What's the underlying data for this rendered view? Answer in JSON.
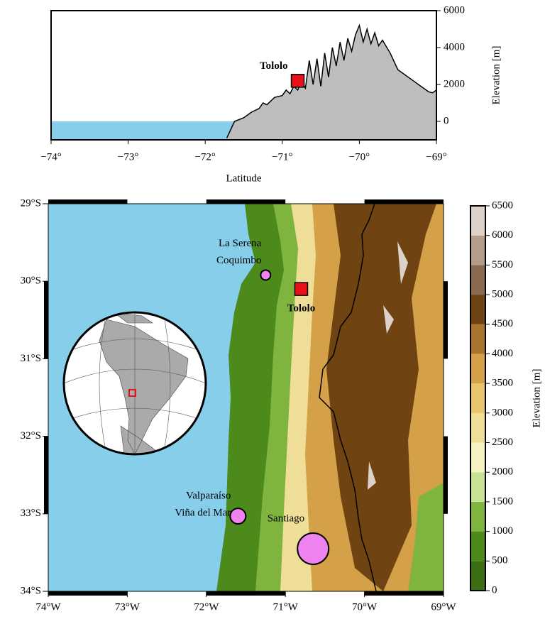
{
  "profile": {
    "type": "area",
    "x": [
      -71.72,
      -71.62,
      -71.5,
      -71.4,
      -71.3,
      -71.25,
      -71.2,
      -71.1,
      -71.0,
      -70.95,
      -70.9,
      -70.85,
      -70.8,
      -70.75,
      -70.7,
      -70.65,
      -70.6,
      -70.55,
      -70.5,
      -70.45,
      -70.4,
      -70.35,
      -70.3,
      -70.25,
      -70.2,
      -70.15,
      -70.1,
      -70.05,
      -70.0,
      -69.95,
      -69.9,
      -69.85,
      -69.8,
      -69.75,
      -69.7,
      -69.6,
      -69.5,
      -69.4,
      -69.3,
      -69.2,
      -69.1,
      -69.05,
      -69.0
    ],
    "values": [
      -900,
      0,
      200,
      500,
      700,
      1000,
      900,
      1300,
      1400,
      1700,
      1500,
      1900,
      1700,
      2200,
      1800,
      3300,
      2000,
      3400,
      1900,
      3700,
      2400,
      4000,
      3000,
      4300,
      3300,
      4500,
      3800,
      4700,
      5200,
      4300,
      5000,
      4200,
      4800,
      4100,
      4400,
      3700,
      2800,
      2500,
      2200,
      1900,
      1600,
      1550,
      1700
    ],
    "color": "#bebebe",
    "sea_color": "#87ceeb",
    "xlim": [
      -74,
      -69
    ],
    "xticks": [
      {
        "value": -74,
        "label": "−74°"
      },
      {
        "value": -73,
        "label": "−73°"
      },
      {
        "value": -72,
        "label": "−72°"
      },
      {
        "value": -71,
        "label": "−71°"
      },
      {
        "value": -70,
        "label": "−70°"
      },
      {
        "value": -69,
        "label": "−69°"
      }
    ],
    "ylim": [
      -1000,
      6000
    ],
    "yticks": [
      0,
      2000,
      4000,
      6000
    ],
    "xlabel": "Latitude",
    "ylabel": "Elevation [m]",
    "marker": {
      "label": "Tololo",
      "x": -70.8,
      "y": 2200,
      "color": "#e8101a"
    }
  },
  "map": {
    "xlim": [
      -74,
      -69
    ],
    "ylim": [
      -34,
      -29
    ],
    "sea_color": "#87ceeb",
    "xticks": [
      {
        "value": -74,
        "label": "74°W"
      },
      {
        "value": -73,
        "label": "73°W"
      },
      {
        "value": -72,
        "label": "72°W"
      },
      {
        "value": -71,
        "label": "71°W"
      },
      {
        "value": -70,
        "label": "70°W"
      },
      {
        "value": -69,
        "label": "69°W"
      }
    ],
    "yticks": [
      {
        "value": -29,
        "label": "29°S"
      },
      {
        "value": -30,
        "label": "30°S"
      },
      {
        "value": -31,
        "label": "31°S"
      },
      {
        "value": -32,
        "label": "32°S"
      },
      {
        "value": -33,
        "label": "33°S"
      },
      {
        "value": -34,
        "label": "34°S"
      }
    ],
    "cities": [
      {
        "label": [
          "La Serena",
          "Coquimbo"
        ],
        "lon": -71.25,
        "lat": -29.92,
        "color": "#ee82ee"
      },
      {
        "label": [
          "Valparaíso",
          "Viña del Mar"
        ],
        "lon": -71.6,
        "lat": -33.03,
        "color": "#ee82ee"
      },
      {
        "label": [
          "Santiago"
        ],
        "lon": -70.65,
        "lat": -33.45,
        "color": "#ee82ee"
      }
    ],
    "observatory": {
      "label": "Tololo",
      "lon": -70.8,
      "lat": -30.1,
      "color": "#e8101a"
    }
  },
  "colorbar": {
    "range": [
      0,
      6500
    ],
    "ticks": [
      0,
      500,
      1000,
      1500,
      2000,
      2500,
      3000,
      3500,
      4000,
      4500,
      5000,
      5500,
      6000,
      6500
    ],
    "label": "Elevation [m]",
    "colors": [
      "#3b6e12",
      "#4c8a1c",
      "#7fb53f",
      "#c7e294",
      "#f5f3c0",
      "#efde98",
      "#e8c46c",
      "#d4a048",
      "#a8742e",
      "#6f4412",
      "#8a6a50",
      "#b49c8a",
      "#ddd2ca"
    ]
  }
}
